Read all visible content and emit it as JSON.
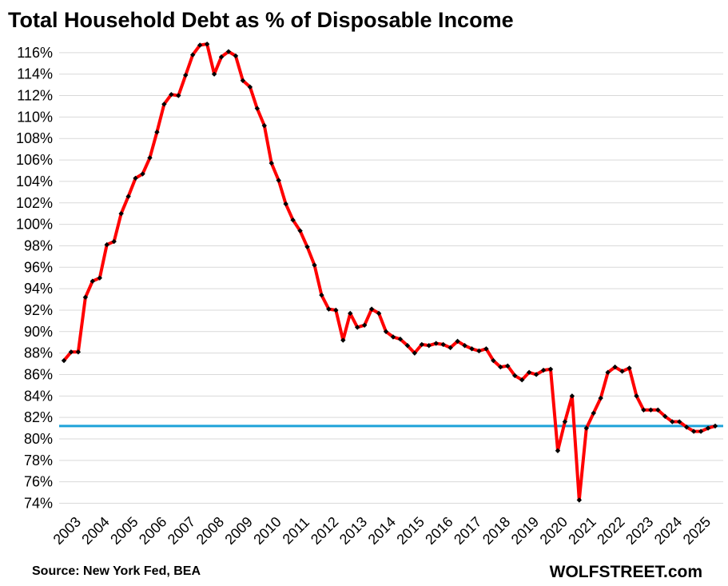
{
  "title": "Total Household Debt as % of Disposable Income",
  "source": "Source: New York Fed, BEA",
  "brand": "WOLFSTREET.com",
  "colors": {
    "series_line": "#ff0000",
    "markers": "#000000",
    "reference_line": "#1fa3d9",
    "gridlines": "#d9d9d9"
  },
  "chart_data": {
    "type": "line",
    "title": "Total Household Debt as % of Disposable Income",
    "xlabel": "",
    "ylabel": "",
    "ylim": [
      73.5,
      117
    ],
    "y_ticks": [
      "74%",
      "76%",
      "78%",
      "80%",
      "82%",
      "84%",
      "86%",
      "88%",
      "90%",
      "92%",
      "94%",
      "96%",
      "98%",
      "100%",
      "102%",
      "104%",
      "106%",
      "108%",
      "110%",
      "112%",
      "114%",
      "116%"
    ],
    "x_ticks": [
      "2003",
      "2004",
      "2005",
      "2006",
      "2007",
      "2008",
      "2009",
      "2010",
      "2011",
      "2012",
      "2013",
      "2014",
      "2015",
      "2016",
      "2017",
      "2018",
      "2019",
      "2020",
      "2021",
      "2022",
      "2023",
      "2024",
      "2025"
    ],
    "grid": true,
    "legend": "none",
    "frequency": "quarterly",
    "x_start": "2003",
    "reference_line": 81.2,
    "series": [
      {
        "values": [
          87.3,
          88.1,
          88.1,
          93.2,
          94.7,
          95.0,
          98.1,
          98.4,
          101.0,
          102.6,
          104.3,
          104.7,
          106.2,
          108.6,
          111.2,
          112.1,
          112.0,
          113.9,
          115.8,
          116.7,
          116.8,
          114.0,
          115.6,
          116.1,
          115.7,
          113.4,
          112.8,
          110.8,
          109.2,
          105.7,
          104.1,
          101.9,
          100.4,
          99.4,
          97.9,
          96.2,
          93.4,
          92.1,
          92.0,
          89.2,
          91.7,
          90.4,
          90.6,
          92.1,
          91.7,
          90.0,
          89.5,
          89.3,
          88.7,
          88.0,
          88.8,
          88.7,
          88.9,
          88.8,
          88.5,
          89.1,
          88.7,
          88.4,
          88.2,
          88.4,
          87.3,
          86.7,
          86.8,
          85.9,
          85.5,
          86.2,
          86.0,
          86.4,
          86.5,
          78.9,
          81.6,
          84.0,
          74.3,
          81.0,
          82.4,
          83.8,
          86.2,
          86.7,
          86.3,
          86.6,
          84.0,
          82.7,
          82.7,
          82.7,
          82.1,
          81.6,
          81.6,
          81.1,
          80.7,
          80.7,
          81.0,
          81.2
        ]
      }
    ]
  }
}
